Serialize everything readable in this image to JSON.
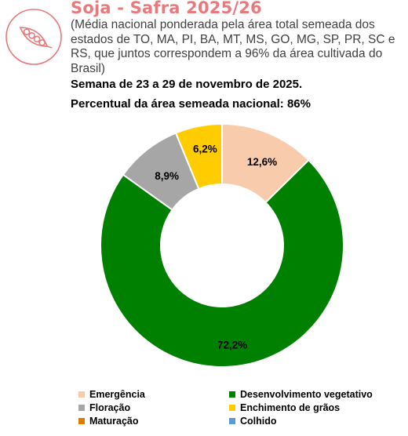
{
  "header": {
    "title": "Soja - Safra 2025/26",
    "subtitle": "(Média nacional ponderada pela área total semeada dos estados de TO, MA, PI, BA, MT, MS, GO, MG, SP, PR, SC e RS, que juntos correspondem a 96% da área cultivada do Brasil)",
    "week": "Semana de 23 a 29 de novembro de 2025.",
    "percent_line": "Percentual da área semeada nacional: 86%",
    "logo_icon": "soybean-pod-icon"
  },
  "chart_data": {
    "type": "pie",
    "donut": true,
    "title": "Soja - Safra 2025/26",
    "categories": [
      "Emergência",
      "Desenvolvimento vegetativo",
      "Floração",
      "Enchimento de grãos",
      "Maturação",
      "Colhido"
    ],
    "values": [
      12.6,
      72.2,
      8.9,
      6.2,
      0,
      0
    ],
    "labels": [
      "12,6%",
      "72,2%",
      "8,9%",
      "6,2%",
      "",
      ""
    ],
    "colors": [
      "#f8cbad",
      "#008000",
      "#a6a6a6",
      "#ffcc00",
      "#e07b00",
      "#5b9bd5"
    ],
    "legend_position": "bottom"
  },
  "legend": [
    {
      "label": "Emergência",
      "color": "#f8cbad"
    },
    {
      "label": "Desenvolvimento vegetativo",
      "color": "#008000"
    },
    {
      "label": "Floração",
      "color": "#a6a6a6"
    },
    {
      "label": "Enchimento de grãos",
      "color": "#ffcc00"
    },
    {
      "label": "Maturação",
      "color": "#e07b00"
    },
    {
      "label": "Colhido",
      "color": "#5b9bd5"
    }
  ]
}
